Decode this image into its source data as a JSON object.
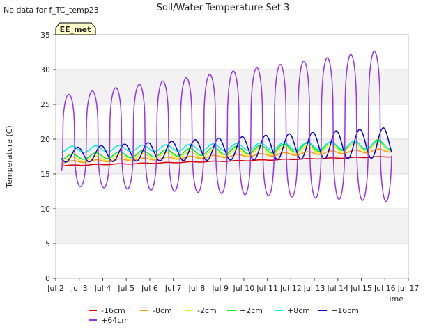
{
  "note": "No data for f_TC_temp23",
  "station_label": "EE_met",
  "chart_data": {
    "type": "line",
    "title": "Soil/Water Temperature Set 3",
    "xlabel": "Time",
    "ylabel": "Temperature (C)",
    "xlim": [
      2.0,
      17.0
    ],
    "ylim": [
      0,
      35
    ],
    "x_ticks": [
      {
        "v": 2,
        "label": "Jul 2"
      },
      {
        "v": 3,
        "label": "Jul 3"
      },
      {
        "v": 4,
        "label": "Jul 4"
      },
      {
        "v": 5,
        "label": "Jul 5"
      },
      {
        "v": 6,
        "label": "Jul 6"
      },
      {
        "v": 7,
        "label": "Jul 7"
      },
      {
        "v": 8,
        "label": "Jul 8"
      },
      {
        "v": 9,
        "label": "Jul 9"
      },
      {
        "v": 10,
        "label": "Jul 10"
      },
      {
        "v": 11,
        "label": "Jul 11"
      },
      {
        "v": 12,
        "label": "Jul 12"
      },
      {
        "v": 13,
        "label": "Jul 13"
      },
      {
        "v": 14,
        "label": "Jul 14"
      },
      {
        "v": 15,
        "label": "Jul 15"
      },
      {
        "v": 16,
        "label": "Jul 16"
      },
      {
        "v": 17,
        "label": "Jul 17"
      }
    ],
    "y_ticks": [
      0,
      5,
      10,
      15,
      20,
      25,
      30,
      35
    ],
    "grid": "horizontal alternating bands",
    "legend_position": "bottom",
    "series": [
      {
        "name": "-16cm",
        "color": "#dd0000",
        "start": 16.2,
        "end": 17.5,
        "amp": 0.05,
        "peak": 0.7,
        "sharp": 1,
        "amp_growth": 0
      },
      {
        "name": "-8cm",
        "color": "#ff9900",
        "start": 16.7,
        "end": 18.4,
        "amp": 0.15,
        "peak": 0.72,
        "sharp": 1,
        "amp_growth": 0.1
      },
      {
        "name": "-2cm",
        "color": "#eeee00",
        "start": 17.0,
        "end": 19.0,
        "amp": 0.35,
        "peak": 0.7,
        "sharp": 1,
        "amp_growth": 0.3
      },
      {
        "name": "+2cm",
        "color": "#00ee00",
        "start": 17.4,
        "end": 19.3,
        "amp": 0.4,
        "peak": 0.7,
        "sharp": 1,
        "amp_growth": 0.3
      },
      {
        "name": "+8cm",
        "color": "#00eeee",
        "start": 18.5,
        "end": 19.2,
        "amp": 0.45,
        "peak": 0.7,
        "sharp": 1,
        "amp_growth": 0.1
      },
      {
        "name": "+16cm",
        "color": "#0000cc",
        "start": 17.7,
        "end": 19.5,
        "amp": 1.0,
        "peak": 0.93,
        "sharp": 1,
        "amp_growth": 1.2
      },
      {
        "name": "+64cm",
        "color": "#9933ee",
        "start": 19.8,
        "end": 22.0,
        "amp": 6.5,
        "peak": 0.55,
        "sharp": 3,
        "amp_growth": 4.5
      }
    ]
  }
}
